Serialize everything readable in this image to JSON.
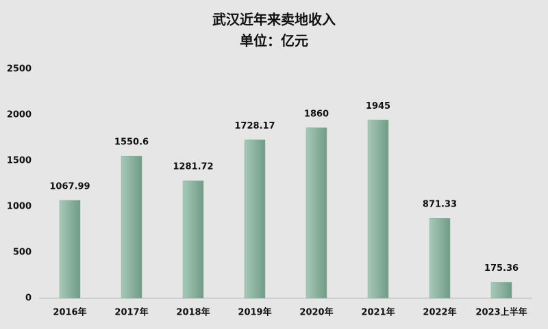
{
  "chart_data": {
    "type": "bar",
    "title": "武汉近年来卖地收入",
    "subtitle": "单位：亿元",
    "categories": [
      "2016年",
      "2017年",
      "2018年",
      "2019年",
      "2020年",
      "2021年",
      "2022年",
      "2023上半年"
    ],
    "values": [
      1067.99,
      1550.6,
      1281.72,
      1728.17,
      1860,
      1945,
      871.33,
      175.36
    ],
    "color": "#86b09c",
    "ylim": [
      0,
      2500
    ],
    "yticks": [
      0,
      500,
      1000,
      1500,
      2000,
      2500
    ],
    "grid": false
  }
}
